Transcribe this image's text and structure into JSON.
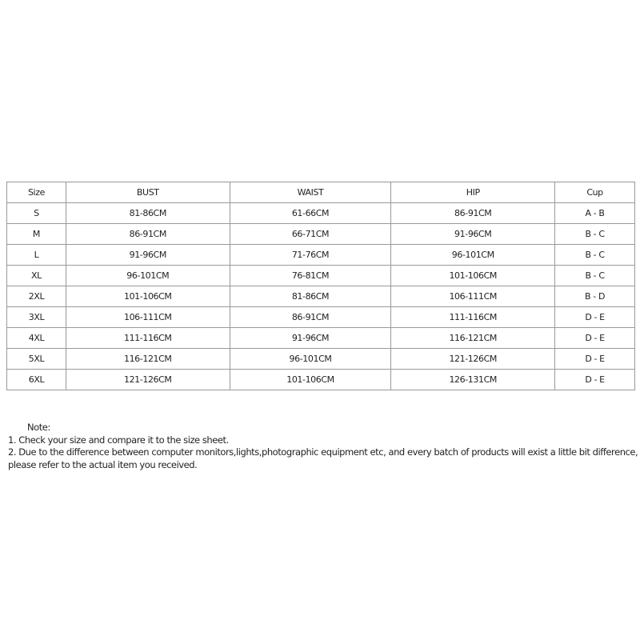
{
  "table": {
    "headers": [
      "Size",
      "BUST",
      "WAIST",
      "HIP",
      "Cup"
    ],
    "rows": [
      [
        "S",
        "81-86CM",
        "61-66CM",
        "86-91CM",
        "A - B"
      ],
      [
        "M",
        "86-91CM",
        "66-71CM",
        "91-96CM",
        "B - C"
      ],
      [
        "L",
        "91-96CM",
        "71-76CM",
        "96-101CM",
        "B - C"
      ],
      [
        "XL",
        "96-101CM",
        "76-81CM",
        "101-106CM",
        "B - C"
      ],
      [
        "2XL",
        "101-106CM",
        "81-86CM",
        "106-111CM",
        "B - D"
      ],
      [
        "3XL",
        "106-111CM",
        "86-91CM",
        "111-116CM",
        "D - E"
      ],
      [
        "4XL",
        "111-116CM",
        "91-96CM",
        "116-121CM",
        "D - E"
      ],
      [
        "5XL",
        "116-121CM",
        "96-101CM",
        "121-126CM",
        "D - E"
      ],
      [
        "6XL",
        "121-126CM",
        "101-106CM",
        "126-131CM",
        "D - E"
      ]
    ]
  },
  "note": {
    "title": "Note:",
    "lines": [
      "1. Check your size and compare it to the size sheet.",
      "2. Due to the difference between computer monitors,lights,photographic equipment etc, and every batch of products will exist a little bit difference,",
      "please refer to the actual item you received."
    ]
  }
}
